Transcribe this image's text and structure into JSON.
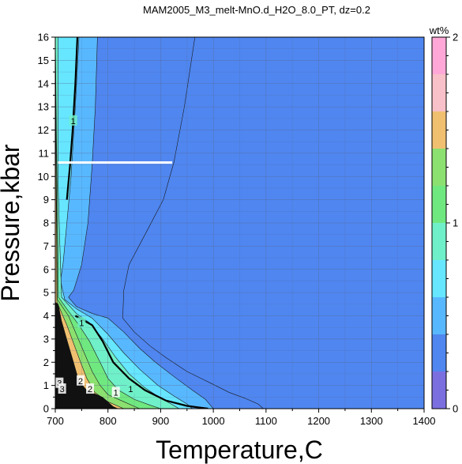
{
  "chart_data": {
    "type": "heatmap",
    "title": "MAM2005_M3_melt-MnO.d_H2O_8.0_PT, dz=0.2",
    "xlabel": "Temperature,C",
    "ylabel": "Pressure,kbar",
    "xlim": [
      700,
      1400
    ],
    "ylim": [
      0,
      16
    ],
    "x_ticks": [
      700,
      800,
      900,
      1000,
      1100,
      1200,
      1300,
      1400
    ],
    "y_ticks": [
      0,
      1,
      2,
      3,
      4,
      5,
      6,
      7,
      8,
      9,
      10,
      11,
      12,
      13,
      14,
      15,
      16
    ],
    "grid": true,
    "colorbar": {
      "label": "wt%",
      "range": [
        0,
        2
      ],
      "step": 0.2,
      "ticks": [
        0,
        1,
        2
      ],
      "colors": [
        "#7b6fe0",
        "#4f86f0",
        "#58b8ff",
        "#66e6ff",
        "#70f0c8",
        "#70e880",
        "#8ce070",
        "#f0c070",
        "#f8c0c8",
        "#ffa8d8"
      ]
    },
    "contour_labels": [
      "1",
      "1",
      "1",
      "1",
      "2",
      "2",
      "3",
      "3"
    ],
    "regions": [
      {
        "value_range": [
          0.2,
          0.4
        ],
        "boundary": [
          [
            965,
            16
          ],
          [
            945,
            13
          ],
          [
            925,
            10.6
          ],
          [
            905,
            9
          ],
          [
            875,
            7.7
          ],
          [
            840,
            6.2
          ],
          [
            830,
            5.1
          ],
          [
            828,
            3.9
          ],
          [
            850,
            3.3
          ],
          [
            880,
            2.7
          ],
          [
            910,
            2.2
          ],
          [
            950,
            1.6
          ],
          [
            995,
            1.1
          ],
          [
            1030,
            0.7
          ],
          [
            1060,
            0.45
          ],
          [
            1085,
            0.2
          ],
          [
            1095,
            0
          ]
        ]
      },
      {
        "value_range": [
          0.4,
          0.6
        ],
        "boundary": [
          [
            780,
            16
          ],
          [
            776,
            13
          ],
          [
            770,
            10.5
          ],
          [
            762,
            8
          ],
          [
            750,
            6.2
          ],
          [
            735,
            5.1
          ],
          [
            725,
            4.8
          ],
          [
            740,
            4.4
          ],
          [
            770,
            4.1
          ],
          [
            800,
            3.9
          ],
          [
            830,
            3.3
          ],
          [
            860,
            2.6
          ],
          [
            890,
            2
          ],
          [
            930,
            1.3
          ],
          [
            960,
            0.8
          ],
          [
            985,
            0.4
          ],
          [
            1000,
            0
          ]
        ]
      },
      {
        "value_range": [
          0.6,
          0.8
        ],
        "boundary": [
          [
            745,
            16
          ],
          [
            738,
            13
          ],
          [
            730,
            10
          ],
          [
            722,
            8
          ],
          [
            715,
            6.3
          ],
          [
            710,
            5.5
          ],
          [
            718,
            4.7
          ],
          [
            740,
            4.3
          ],
          [
            770,
            3.9
          ],
          [
            800,
            3.2
          ],
          [
            830,
            2.4
          ],
          [
            860,
            1.7
          ],
          [
            895,
            1
          ],
          [
            925,
            0.55
          ],
          [
            950,
            0.2
          ],
          [
            960,
            0
          ]
        ]
      },
      {
        "value_range": [
          0.8,
          1.0
        ],
        "boundary": [
          [
            705,
            16
          ],
          [
            705,
            10
          ],
          [
            708,
            7.5
          ],
          [
            712,
            4.8
          ],
          [
            740,
            4.1
          ],
          [
            765,
            3.7
          ],
          [
            790,
            3
          ],
          [
            815,
            2.2
          ],
          [
            840,
            1.5
          ],
          [
            870,
            0.9
          ],
          [
            900,
            0.45
          ],
          [
            920,
            0.2
          ],
          [
            935,
            0
          ]
        ]
      },
      {
        "value_range": [
          1.0,
          1.2
        ],
        "boundary": [
          [
            706,
            4.8
          ],
          [
            725,
            4.2
          ],
          [
            745,
            3.6
          ],
          [
            765,
            2.9
          ],
          [
            785,
            2
          ],
          [
            800,
            1.3
          ],
          [
            820,
            0.8
          ],
          [
            850,
            0.4
          ],
          [
            880,
            0.15
          ],
          [
            900,
            0
          ]
        ]
      },
      {
        "value_range": [
          1.2,
          1.4
        ],
        "boundary": [
          [
            704,
            4.7
          ],
          [
            725,
            4.0
          ],
          [
            740,
            3.2
          ],
          [
            755,
            2.4
          ],
          [
            770,
            1.6
          ],
          [
            785,
            1.0
          ],
          [
            800,
            0.6
          ],
          [
            830,
            0.3
          ],
          [
            860,
            0
          ]
        ]
      },
      {
        "value_range": [
          1.4,
          1.6
        ],
        "boundary": [
          [
            703,
            4.6
          ],
          [
            722,
            3.6
          ],
          [
            735,
            2.8
          ],
          [
            748,
            2.0
          ],
          [
            760,
            1.3
          ],
          [
            775,
            0.7
          ],
          [
            800,
            0.3
          ],
          [
            830,
            0
          ]
        ]
      }
    ],
    "contour_lines": [
      {
        "value": 1,
        "points": [
          [
            742,
            16
          ],
          [
            738,
            14
          ],
          [
            733,
            12
          ],
          [
            728,
            10.5
          ],
          [
            722,
            9
          ]
        ]
      },
      {
        "value": 1,
        "points": [
          [
            738,
            4.0
          ],
          [
            770,
            3.6
          ],
          [
            790,
            2.9
          ],
          [
            810,
            2.0
          ],
          [
            840,
            1.3
          ],
          [
            870,
            0.8
          ],
          [
            910,
            0.35
          ],
          [
            950,
            0.12
          ],
          [
            990,
            0
          ]
        ]
      }
    ],
    "white_line": {
      "x": [
        705,
        922
      ],
      "y": [
        10.6,
        10.6
      ]
    }
  }
}
